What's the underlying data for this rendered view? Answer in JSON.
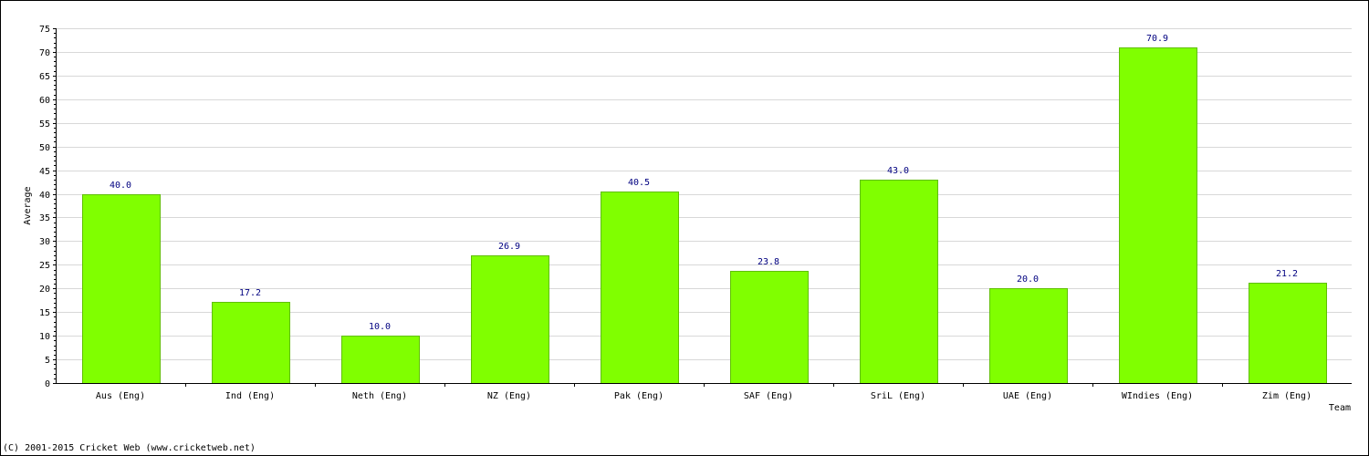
{
  "chart_data": {
    "type": "bar",
    "categories": [
      "Aus (Eng)",
      "Ind (Eng)",
      "Neth (Eng)",
      "NZ (Eng)",
      "Pak (Eng)",
      "SAF (Eng)",
      "SriL (Eng)",
      "UAE (Eng)",
      "WIndies (Eng)",
      "Zim (Eng)"
    ],
    "values": [
      40.0,
      17.2,
      10.0,
      26.9,
      40.5,
      23.8,
      43.0,
      20.0,
      70.9,
      21.2
    ],
    "value_labels": [
      "40.0",
      "17.2",
      "10.0",
      "26.9",
      "40.5",
      "23.8",
      "43.0",
      "20.0",
      "70.9",
      "21.2"
    ],
    "xlabel": "Team",
    "ylabel": "Average",
    "ylim": [
      0,
      75
    ],
    "yticks": [
      0,
      5,
      10,
      15,
      20,
      25,
      30,
      35,
      40,
      45,
      50,
      55,
      60,
      65,
      70,
      75
    ],
    "grid": true,
    "bar_color": "#80ff00",
    "bar_edge_color": "#5fbf00",
    "value_label_color": "#000080",
    "grid_color": "#d8d8d8"
  },
  "footer": {
    "copyright": "(C) 2001-2015 Cricket Web (www.cricketweb.net)"
  }
}
